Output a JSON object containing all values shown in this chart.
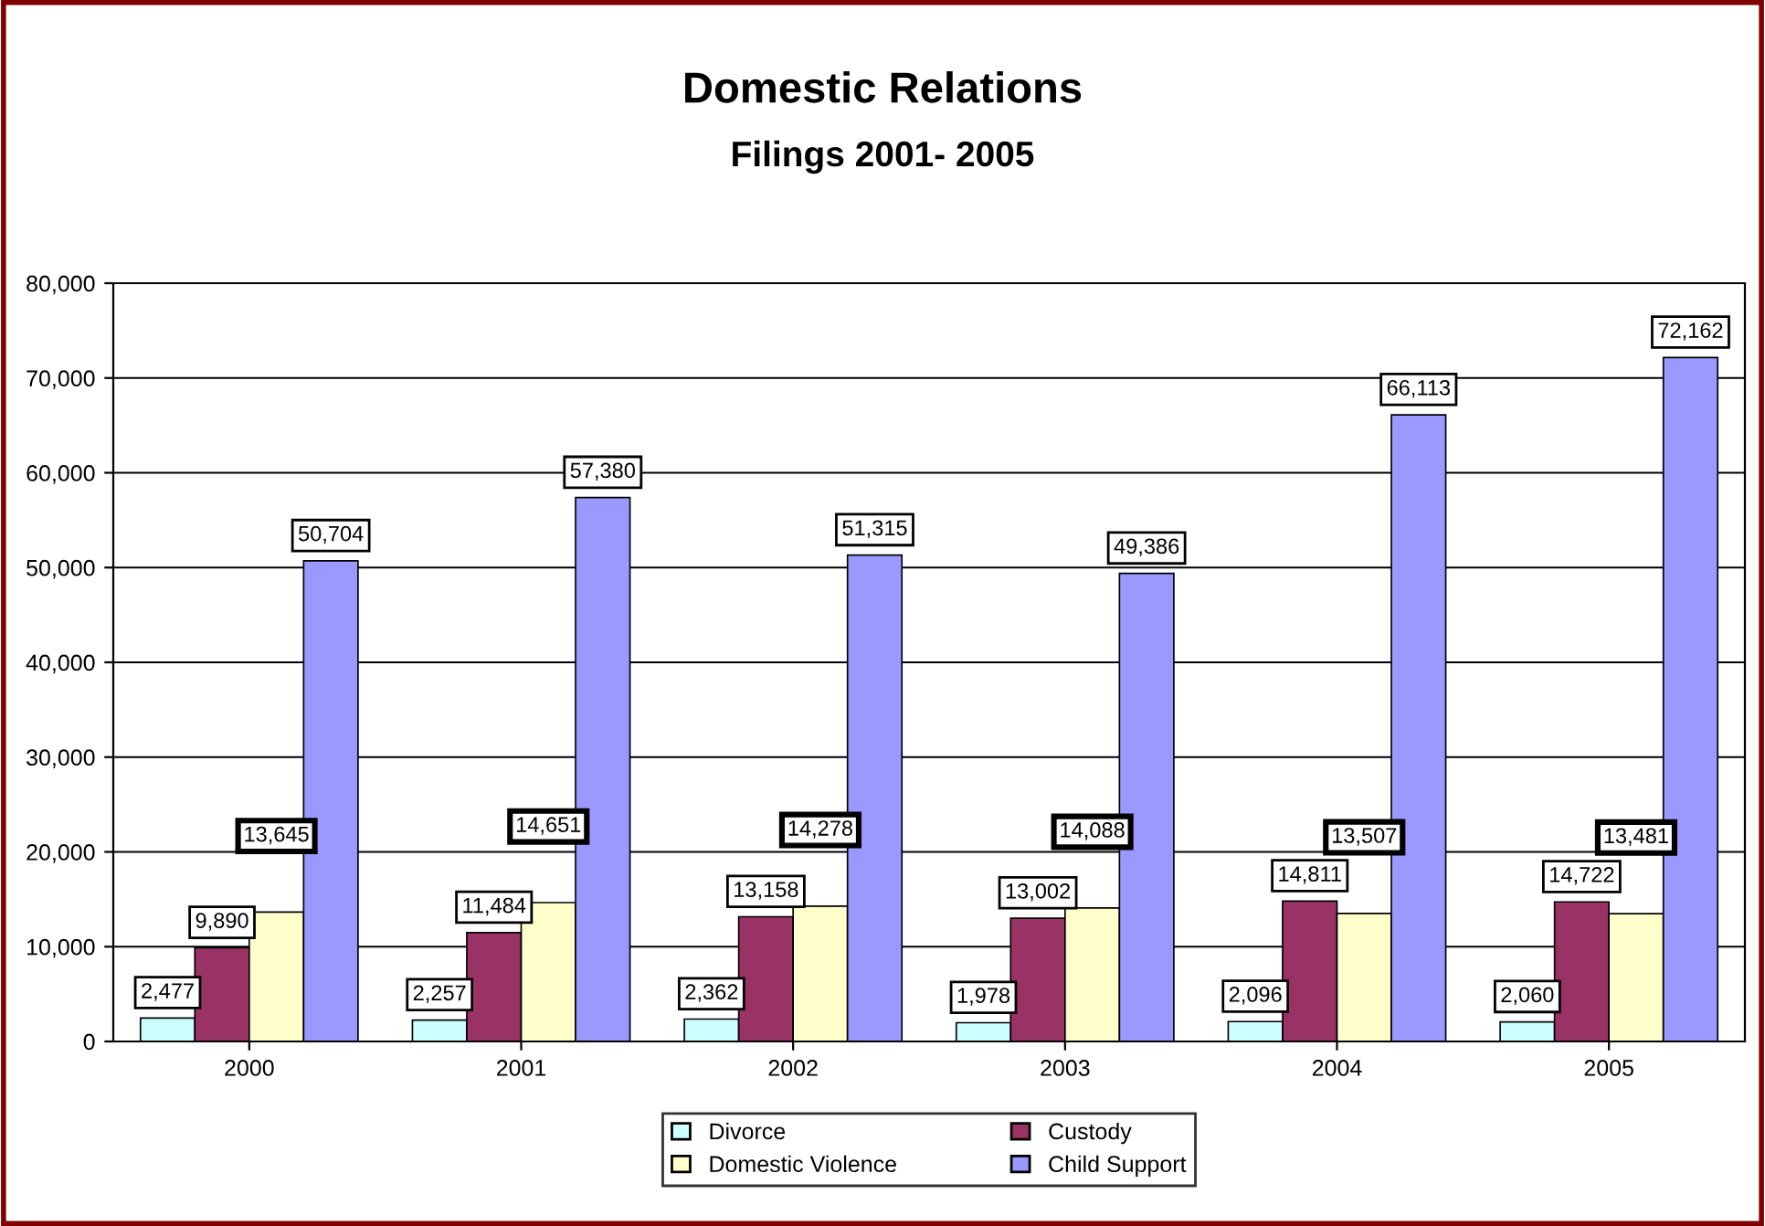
{
  "chart_data": {
    "type": "bar",
    "title": "Domestic Relations",
    "subtitle": "Filings 2001- 2005",
    "categories": [
      "2000",
      "2001",
      "2002",
      "2003",
      "2004",
      "2005"
    ],
    "series": [
      {
        "name": "Divorce",
        "color": "#ccffff",
        "values": [
          2477,
          2257,
          2362,
          1978,
          2096,
          2060
        ],
        "value_labels": [
          "2,477",
          "2,257",
          "2,362",
          "1,978",
          "2,096",
          "2,060"
        ]
      },
      {
        "name": "Custody",
        "color": "#993366",
        "values": [
          9890,
          11484,
          13158,
          13002,
          14811,
          14722
        ],
        "value_labels": [
          "9,890",
          "11,484",
          "13,158",
          "13,002",
          "14,811",
          "14,722"
        ]
      },
      {
        "name": "Domestic Violence",
        "color": "#ffffcc",
        "values": [
          13645,
          14651,
          14278,
          14088,
          13507,
          13481
        ],
        "value_labels": [
          "13,645",
          "14,651",
          "14,278",
          "14,088",
          "13,507",
          "13,481"
        ]
      },
      {
        "name": "Child Support",
        "color": "#9999ff",
        "values": [
          50704,
          57380,
          51315,
          49386,
          66113,
          72162
        ],
        "value_labels": [
          "50,704",
          "57,380",
          "51,315",
          "49,386",
          "66,113",
          "72,162"
        ]
      }
    ],
    "ylim": [
      0,
      80000
    ],
    "yticks": [
      {
        "value": 0,
        "label": "0"
      },
      {
        "value": 10000,
        "label": "10,000"
      },
      {
        "value": 20000,
        "label": "20,000"
      },
      {
        "value": 30000,
        "label": "30,000"
      },
      {
        "value": 40000,
        "label": "40,000"
      },
      {
        "value": 50000,
        "label": "50,000"
      },
      {
        "value": 60000,
        "label": "60,000"
      },
      {
        "value": 70000,
        "label": "70,000"
      },
      {
        "value": 80000,
        "label": "80,000"
      }
    ],
    "grid": "y",
    "legend": "bottom"
  }
}
